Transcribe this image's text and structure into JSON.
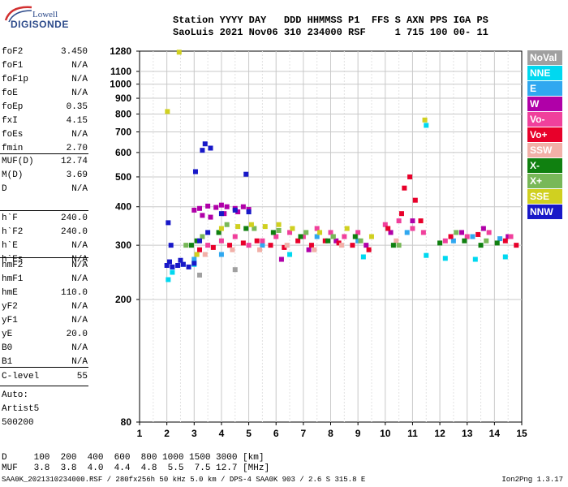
{
  "logo": {
    "line1": "Lowell",
    "line2": "DIGISONDE"
  },
  "header": {
    "line1": "Station YYYY DAY   DDD HHMMSS P1  FFS S AXN PPS IGA PS",
    "line2": "SaoLuis 2021 Nov06 310 234000 RSF     1 715 100 00- 11"
  },
  "params_group1": [
    {
      "name": "foF2",
      "value": "3.450"
    },
    {
      "name": "foF1",
      "value": "N/A"
    },
    {
      "name": "foF1p",
      "value": "N/A"
    },
    {
      "name": "foE",
      "value": "N/A"
    },
    {
      "name": "foEp",
      "value": "0.35"
    },
    {
      "name": "fxI",
      "value": "4.15"
    },
    {
      "name": "foEs",
      "value": "N/A"
    },
    {
      "name": "fmin",
      "value": "2.70"
    }
  ],
  "params_group2": [
    {
      "name": "MUF(D)",
      "value": "12.74"
    },
    {
      "name": "M(D)",
      "value": "3.69"
    },
    {
      "name": "D",
      "value": "N/A"
    }
  ],
  "params_group3": [
    {
      "name": "h`F",
      "value": "240.0"
    },
    {
      "name": "h`F2",
      "value": "240.0"
    },
    {
      "name": "h`E",
      "value": "N/A"
    },
    {
      "name": "h`Es",
      "value": "N/A"
    }
  ],
  "params_group4": [
    {
      "name": "hmF2",
      "value": "N/A"
    },
    {
      "name": "hmF1",
      "value": "N/A"
    },
    {
      "name": "hmE",
      "value": "110.0"
    },
    {
      "name": "yF2",
      "value": "N/A"
    },
    {
      "name": "yF1",
      "value": "N/A"
    },
    {
      "name": "yE",
      "value": "20.0"
    },
    {
      "name": "B0",
      "value": "N/A"
    },
    {
      "name": "B1",
      "value": "N/A"
    }
  ],
  "params_group5": [
    {
      "name": "C-level",
      "value": "55"
    }
  ],
  "auto": [
    "Auto:",
    "Artist5",
    "500200"
  ],
  "legend": [
    {
      "label": "NoVal",
      "color": "#a0a0a0"
    },
    {
      "label": "NNE",
      "color": "#00d8f0"
    },
    {
      "label": "E",
      "color": "#30a8f0"
    },
    {
      "label": "W",
      "color": "#b000a8"
    },
    {
      "label": "Vo-",
      "color": "#f0409c"
    },
    {
      "label": "Vo+",
      "color": "#e8002a"
    },
    {
      "label": "SSW",
      "color": "#f2b0a8"
    },
    {
      "label": "X-",
      "color": "#108010"
    },
    {
      "label": "X+",
      "color": "#78b858"
    },
    {
      "label": "SSE",
      "color": "#d0d020"
    },
    {
      "label": "NNW",
      "color": "#1818c8"
    }
  ],
  "footer": {
    "d_row": "D     100  200  400  600  800 1000 1500 3000 [km]",
    "muf_row": "MUF   3.8  3.8  4.0  4.4  4.8  5.5  7.5 12.7 [MHz]",
    "file_line": "SAA0K_2021310234000.RSF / 280fx256h 50 kHz 5.0 km / DPS-4 SAA0K 903 / 2.6 S 315.8 E",
    "version": "Ion2Png 1.3.17"
  },
  "chart_data": {
    "type": "scatter",
    "title": "",
    "xlabel": "",
    "ylabel": "",
    "xlim": [
      1,
      15
    ],
    "ylim": [
      80,
      1280
    ],
    "y_scale": "log",
    "x_ticks": [
      1,
      2,
      3,
      4,
      5,
      6,
      7,
      8,
      9,
      10,
      11,
      12,
      13,
      14,
      15
    ],
    "y_ticks": [
      80,
      200,
      300,
      400,
      500,
      600,
      700,
      800,
      900,
      1000,
      1100,
      1280
    ],
    "grid": true,
    "legend_position": "right",
    "series": [
      {
        "name": "NoVal",
        "points": [
          [
            3.2,
            240
          ],
          [
            4.5,
            250
          ]
        ]
      },
      {
        "name": "NNE",
        "points": [
          [
            2.05,
            232
          ],
          [
            2.2,
            245
          ],
          [
            3.0,
            260
          ],
          [
            6.5,
            280
          ],
          [
            9.2,
            275
          ],
          [
            11.5,
            278
          ],
          [
            12.2,
            272
          ],
          [
            13.3,
            270
          ],
          [
            14.4,
            275
          ],
          [
            11.5,
            735
          ]
        ]
      },
      {
        "name": "E",
        "points": [
          [
            2.6,
            260
          ],
          [
            3.0,
            270
          ],
          [
            4.0,
            280
          ],
          [
            5.5,
            300
          ],
          [
            7.5,
            320
          ],
          [
            9.0,
            310
          ],
          [
            10.8,
            330
          ],
          [
            12.5,
            310
          ],
          [
            13.2,
            320
          ],
          [
            14.2,
            315
          ]
        ]
      },
      {
        "name": "W",
        "points": [
          [
            3.0,
            390
          ],
          [
            3.2,
            395
          ],
          [
            3.5,
            402
          ],
          [
            3.8,
            398
          ],
          [
            4.0,
            405
          ],
          [
            4.2,
            400
          ],
          [
            4.5,
            395
          ],
          [
            4.8,
            400
          ],
          [
            5.0,
            392
          ],
          [
            3.3,
            375
          ],
          [
            3.6,
            370
          ],
          [
            4.1,
            380
          ],
          [
            4.6,
            385
          ],
          [
            6.2,
            270
          ],
          [
            7.2,
            290
          ],
          [
            8.2,
            310
          ],
          [
            9.3,
            300
          ],
          [
            10.2,
            330
          ],
          [
            11.0,
            360
          ],
          [
            12.8,
            330
          ],
          [
            13.6,
            340
          ],
          [
            14.5,
            320
          ]
        ]
      },
      {
        "name": "Vo-",
        "points": [
          [
            3.5,
            300
          ],
          [
            4.0,
            310
          ],
          [
            4.5,
            320
          ],
          [
            5.0,
            300
          ],
          [
            5.5,
            310
          ],
          [
            6.0,
            320
          ],
          [
            6.5,
            330
          ],
          [
            7.0,
            320
          ],
          [
            7.5,
            340
          ],
          [
            8.0,
            330
          ],
          [
            8.5,
            320
          ],
          [
            9.0,
            330
          ],
          [
            10.0,
            350
          ],
          [
            10.5,
            360
          ],
          [
            11.0,
            340
          ],
          [
            11.4,
            330
          ],
          [
            12.2,
            310
          ],
          [
            13.0,
            320
          ],
          [
            13.8,
            330
          ],
          [
            14.6,
            320
          ]
        ]
      },
      {
        "name": "Vo+",
        "points": [
          [
            3.2,
            290
          ],
          [
            3.7,
            295
          ],
          [
            4.3,
            300
          ],
          [
            4.8,
            305
          ],
          [
            5.3,
            310
          ],
          [
            5.8,
            300
          ],
          [
            6.3,
            295
          ],
          [
            6.8,
            310
          ],
          [
            7.3,
            300
          ],
          [
            7.8,
            310
          ],
          [
            8.3,
            305
          ],
          [
            8.8,
            300
          ],
          [
            9.4,
            290
          ],
          [
            10.1,
            340
          ],
          [
            10.6,
            380
          ],
          [
            10.7,
            460
          ],
          [
            10.9,
            500
          ],
          [
            11.1,
            420
          ],
          [
            11.3,
            360
          ],
          [
            12.4,
            320
          ],
          [
            13.4,
            325
          ],
          [
            14.4,
            310
          ],
          [
            14.8,
            300
          ]
        ]
      },
      {
        "name": "SSW",
        "points": [
          [
            3.4,
            280
          ],
          [
            4.4,
            290
          ],
          [
            5.4,
            290
          ],
          [
            6.4,
            300
          ],
          [
            7.4,
            290
          ],
          [
            8.4,
            300
          ],
          [
            10.4,
            310
          ]
        ]
      },
      {
        "name": "X-",
        "points": [
          [
            2.9,
            300
          ],
          [
            3.1,
            310
          ],
          [
            3.9,
            330
          ],
          [
            4.9,
            340
          ],
          [
            5.9,
            330
          ],
          [
            6.9,
            320
          ],
          [
            7.9,
            310
          ],
          [
            8.9,
            320
          ],
          [
            10.3,
            300
          ],
          [
            12.0,
            305
          ],
          [
            12.9,
            310
          ],
          [
            13.5,
            300
          ],
          [
            14.1,
            305
          ]
        ]
      },
      {
        "name": "X+",
        "points": [
          [
            2.7,
            300
          ],
          [
            3.3,
            320
          ],
          [
            4.2,
            350
          ],
          [
            5.2,
            340
          ],
          [
            6.1,
            335
          ],
          [
            7.1,
            330
          ],
          [
            8.1,
            320
          ],
          [
            9.1,
            310
          ],
          [
            10.5,
            300
          ],
          [
            12.6,
            330
          ],
          [
            13.7,
            310
          ]
        ]
      },
      {
        "name": "SSE",
        "points": [
          [
            3.1,
            280
          ],
          [
            4.0,
            340
          ],
          [
            4.6,
            345
          ],
          [
            5.1,
            350
          ],
          [
            5.6,
            345
          ],
          [
            6.1,
            350
          ],
          [
            6.6,
            340
          ],
          [
            7.6,
            330
          ],
          [
            8.6,
            340
          ],
          [
            9.5,
            320
          ],
          [
            2.45,
            1270
          ],
          [
            2.02,
            815
          ],
          [
            11.45,
            765
          ]
        ]
      },
      {
        "name": "NNW",
        "points": [
          [
            2.0,
            258
          ],
          [
            2.2,
            255
          ],
          [
            2.4,
            258
          ],
          [
            2.6,
            260
          ],
          [
            2.8,
            255
          ],
          [
            3.0,
            262
          ],
          [
            2.1,
            265
          ],
          [
            2.5,
            268
          ],
          [
            3.2,
            310
          ],
          [
            3.5,
            330
          ],
          [
            4.0,
            380
          ],
          [
            4.5,
            390
          ],
          [
            5.0,
            385
          ],
          [
            3.3,
            610
          ],
          [
            3.6,
            620
          ],
          [
            3.4,
            640
          ],
          [
            2.05,
            355
          ],
          [
            2.15,
            300
          ],
          [
            3.05,
            520
          ],
          [
            4.9,
            510
          ]
        ]
      }
    ]
  }
}
